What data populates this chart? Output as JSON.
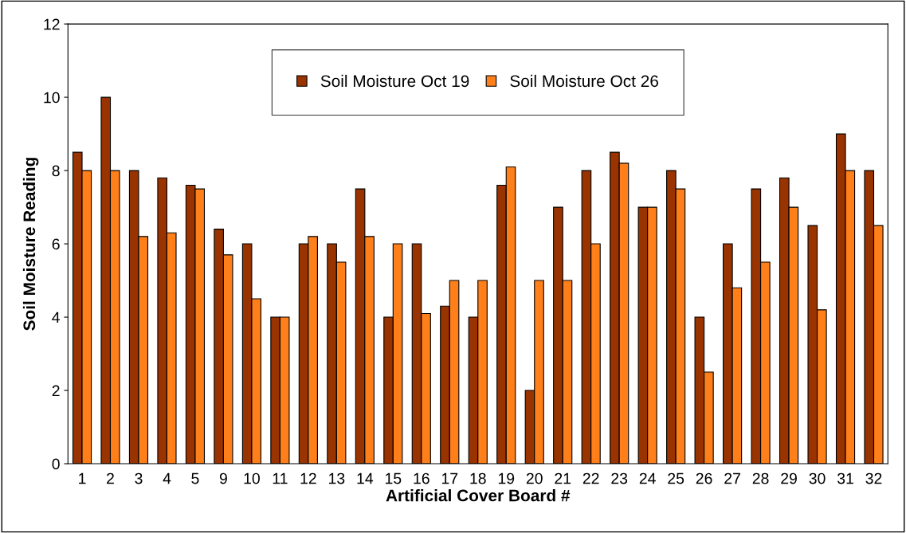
{
  "chart_data": {
    "type": "bar",
    "xlabel": "Artificial Cover Board #",
    "ylabel": "Soil Moisture Reading",
    "categories": [
      "1",
      "2",
      "3",
      "4",
      "5",
      "9",
      "10",
      "11",
      "12",
      "13",
      "14",
      "15",
      "16",
      "17",
      "18",
      "19",
      "20",
      "21",
      "22",
      "23",
      "24",
      "25",
      "26",
      "27",
      "28",
      "29",
      "30",
      "31",
      "32"
    ],
    "series": [
      {
        "name": "Soil Moisture Oct 19",
        "color": "#993300",
        "values": [
          8.5,
          10,
          8,
          7.8,
          7.6,
          6.4,
          6,
          4,
          6,
          6,
          7.5,
          4,
          6,
          4.3,
          4,
          7.6,
          2,
          7,
          8,
          8.5,
          7,
          8,
          4,
          6,
          7.5,
          7.8,
          6.5,
          9,
          8
        ]
      },
      {
        "name": "Soil Moisture Oct 26",
        "color": "#ff7f1a",
        "values": [
          8,
          8,
          6.2,
          6.3,
          7.5,
          5.7,
          4.5,
          4,
          6.2,
          5.5,
          6.2,
          6,
          4.1,
          5,
          5,
          8.1,
          5,
          5,
          6,
          8.2,
          7,
          7.5,
          2.5,
          4.8,
          5.5,
          7,
          4.2,
          8,
          6.5
        ]
      }
    ],
    "ylim": [
      0,
      12
    ],
    "yticks": [
      0,
      2,
      4,
      6,
      8,
      10,
      12
    ],
    "grid": false,
    "legend": "top"
  }
}
